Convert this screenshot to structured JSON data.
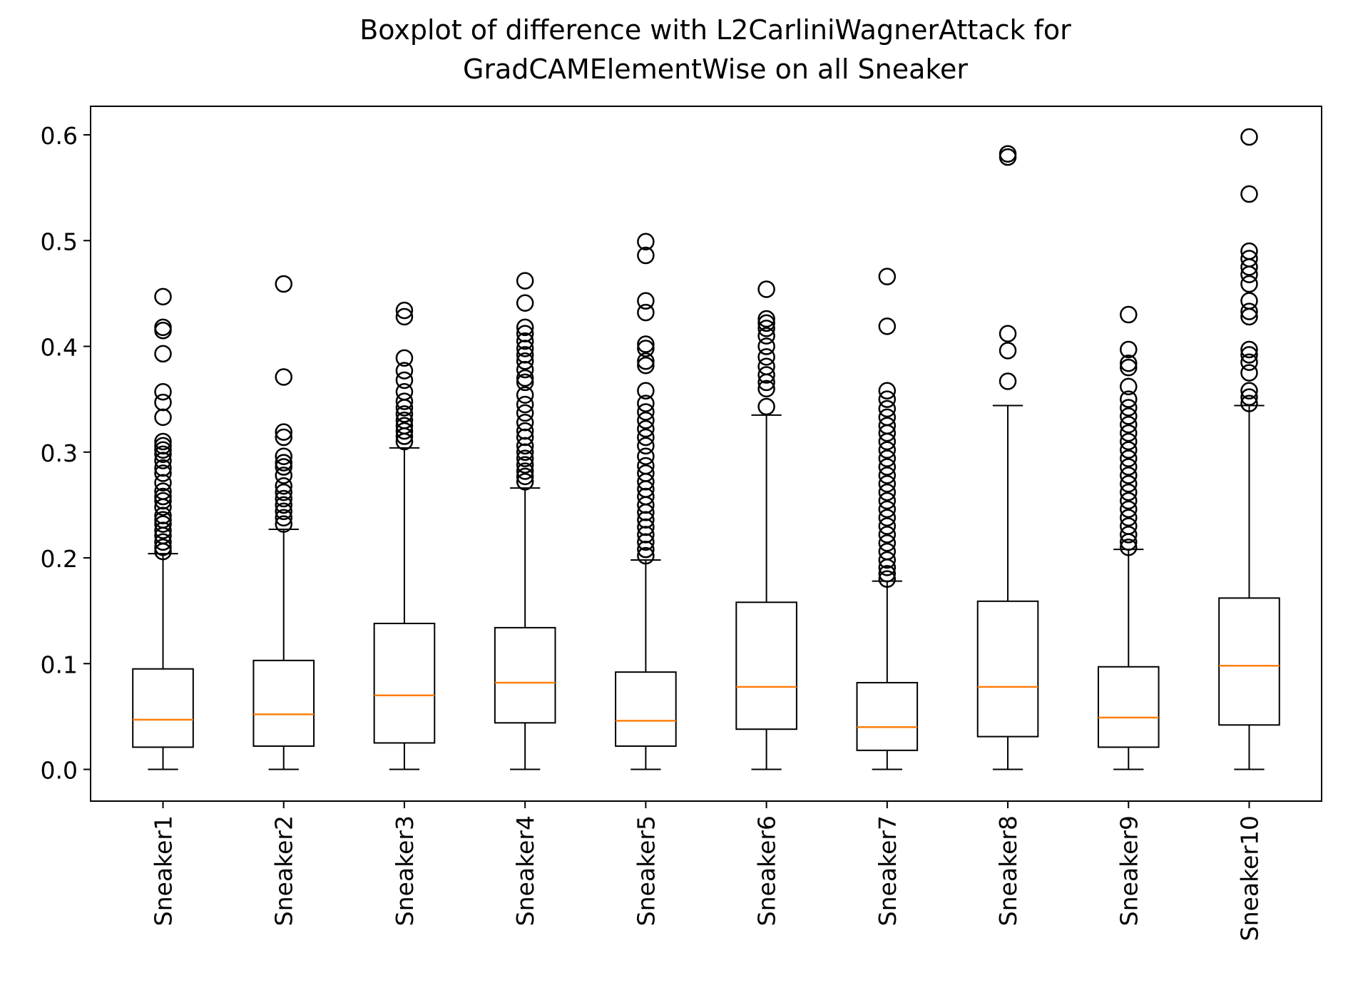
{
  "chart_data": {
    "type": "boxplot",
    "title": [
      "Boxplot of difference with L2CarliniWagnerAttack for",
      "GradCAMElementWise on all Sneaker"
    ],
    "xlabel": "",
    "ylabel": "",
    "ylim": [
      -0.03,
      0.627
    ],
    "yticks": [
      0.0,
      0.1,
      0.2,
      0.3,
      0.4,
      0.5,
      0.6
    ],
    "ytick_labels": [
      "0.0",
      "0.1",
      "0.2",
      "0.3",
      "0.4",
      "0.5",
      "0.6"
    ],
    "grid": false,
    "colors": {
      "box": "#000000",
      "median": "#ff7f0e",
      "flier": "#000000"
    },
    "categories": [
      "Sneaker1",
      "Sneaker2",
      "Sneaker3",
      "Sneaker4",
      "Sneaker5",
      "Sneaker6",
      "Sneaker7",
      "Sneaker8",
      "Sneaker9",
      "Sneaker10"
    ],
    "boxes": [
      {
        "label": "Sneaker1",
        "whislo": 0.0,
        "q1": 0.021,
        "med": 0.047,
        "q3": 0.095,
        "whishi": 0.204,
        "fliers": [
          0.447,
          0.418,
          0.415,
          0.393,
          0.357,
          0.347,
          0.333,
          0.31,
          0.306,
          0.302,
          0.298,
          0.292,
          0.285,
          0.28,
          0.271,
          0.263,
          0.258,
          0.254,
          0.248,
          0.24,
          0.236,
          0.232,
          0.226,
          0.221,
          0.215,
          0.21,
          0.206
        ]
      },
      {
        "label": "Sneaker2",
        "whislo": 0.0,
        "q1": 0.022,
        "med": 0.052,
        "q3": 0.103,
        "whishi": 0.227,
        "fliers": [
          0.459,
          0.371,
          0.319,
          0.314,
          0.296,
          0.29,
          0.286,
          0.278,
          0.268,
          0.262,
          0.256,
          0.25,
          0.244,
          0.238,
          0.232
        ]
      },
      {
        "label": "Sneaker3",
        "whislo": 0.0,
        "q1": 0.025,
        "med": 0.07,
        "q3": 0.138,
        "whishi": 0.304,
        "fliers": [
          0.434,
          0.428,
          0.389,
          0.377,
          0.368,
          0.357,
          0.348,
          0.342,
          0.336,
          0.33,
          0.325,
          0.32,
          0.315,
          0.31
        ]
      },
      {
        "label": "Sneaker4",
        "whislo": 0.0,
        "q1": 0.044,
        "med": 0.082,
        "q3": 0.134,
        "whishi": 0.266,
        "fliers": [
          0.462,
          0.441,
          0.418,
          0.412,
          0.405,
          0.398,
          0.392,
          0.386,
          0.378,
          0.37,
          0.366,
          0.354,
          0.345,
          0.337,
          0.328,
          0.32,
          0.314,
          0.306,
          0.3,
          0.294,
          0.288,
          0.282,
          0.277,
          0.272
        ]
      },
      {
        "label": "Sneaker5",
        "whislo": 0.0,
        "q1": 0.022,
        "med": 0.046,
        "q3": 0.092,
        "whishi": 0.198,
        "fliers": [
          0.499,
          0.486,
          0.443,
          0.432,
          0.402,
          0.398,
          0.386,
          0.382,
          0.358,
          0.346,
          0.338,
          0.33,
          0.322,
          0.314,
          0.306,
          0.296,
          0.287,
          0.28,
          0.272,
          0.265,
          0.258,
          0.25,
          0.243,
          0.236,
          0.229,
          0.222,
          0.215,
          0.208,
          0.202
        ]
      },
      {
        "label": "Sneaker6",
        "whislo": 0.0,
        "q1": 0.038,
        "med": 0.078,
        "q3": 0.158,
        "whishi": 0.335,
        "fliers": [
          0.454,
          0.426,
          0.422,
          0.417,
          0.41,
          0.4,
          0.39,
          0.381,
          0.373,
          0.366,
          0.36,
          0.343
        ]
      },
      {
        "label": "Sneaker7",
        "whislo": 0.0,
        "q1": 0.018,
        "med": 0.04,
        "q3": 0.082,
        "whishi": 0.178,
        "fliers": [
          0.466,
          0.419,
          0.358,
          0.35,
          0.341,
          0.333,
          0.325,
          0.318,
          0.31,
          0.302,
          0.294,
          0.286,
          0.278,
          0.27,
          0.262,
          0.254,
          0.246,
          0.238,
          0.23,
          0.222,
          0.214,
          0.206,
          0.198,
          0.191,
          0.185,
          0.18
        ]
      },
      {
        "label": "Sneaker8",
        "whislo": 0.0,
        "q1": 0.031,
        "med": 0.078,
        "q3": 0.159,
        "whishi": 0.344,
        "fliers": [
          0.582,
          0.579,
          0.412,
          0.396,
          0.367
        ]
      },
      {
        "label": "Sneaker9",
        "whislo": 0.0,
        "q1": 0.021,
        "med": 0.049,
        "q3": 0.097,
        "whishi": 0.208,
        "fliers": [
          0.43,
          0.397,
          0.384,
          0.38,
          0.362,
          0.35,
          0.342,
          0.334,
          0.326,
          0.318,
          0.31,
          0.302,
          0.294,
          0.286,
          0.278,
          0.27,
          0.262,
          0.254,
          0.246,
          0.238,
          0.23,
          0.222,
          0.215,
          0.21
        ]
      },
      {
        "label": "Sneaker10",
        "whislo": 0.0,
        "q1": 0.042,
        "med": 0.098,
        "q3": 0.162,
        "whishi": 0.344,
        "fliers": [
          0.598,
          0.544,
          0.49,
          0.483,
          0.475,
          0.468,
          0.459,
          0.443,
          0.433,
          0.428,
          0.397,
          0.392,
          0.385,
          0.375,
          0.358,
          0.352,
          0.346
        ]
      }
    ]
  }
}
